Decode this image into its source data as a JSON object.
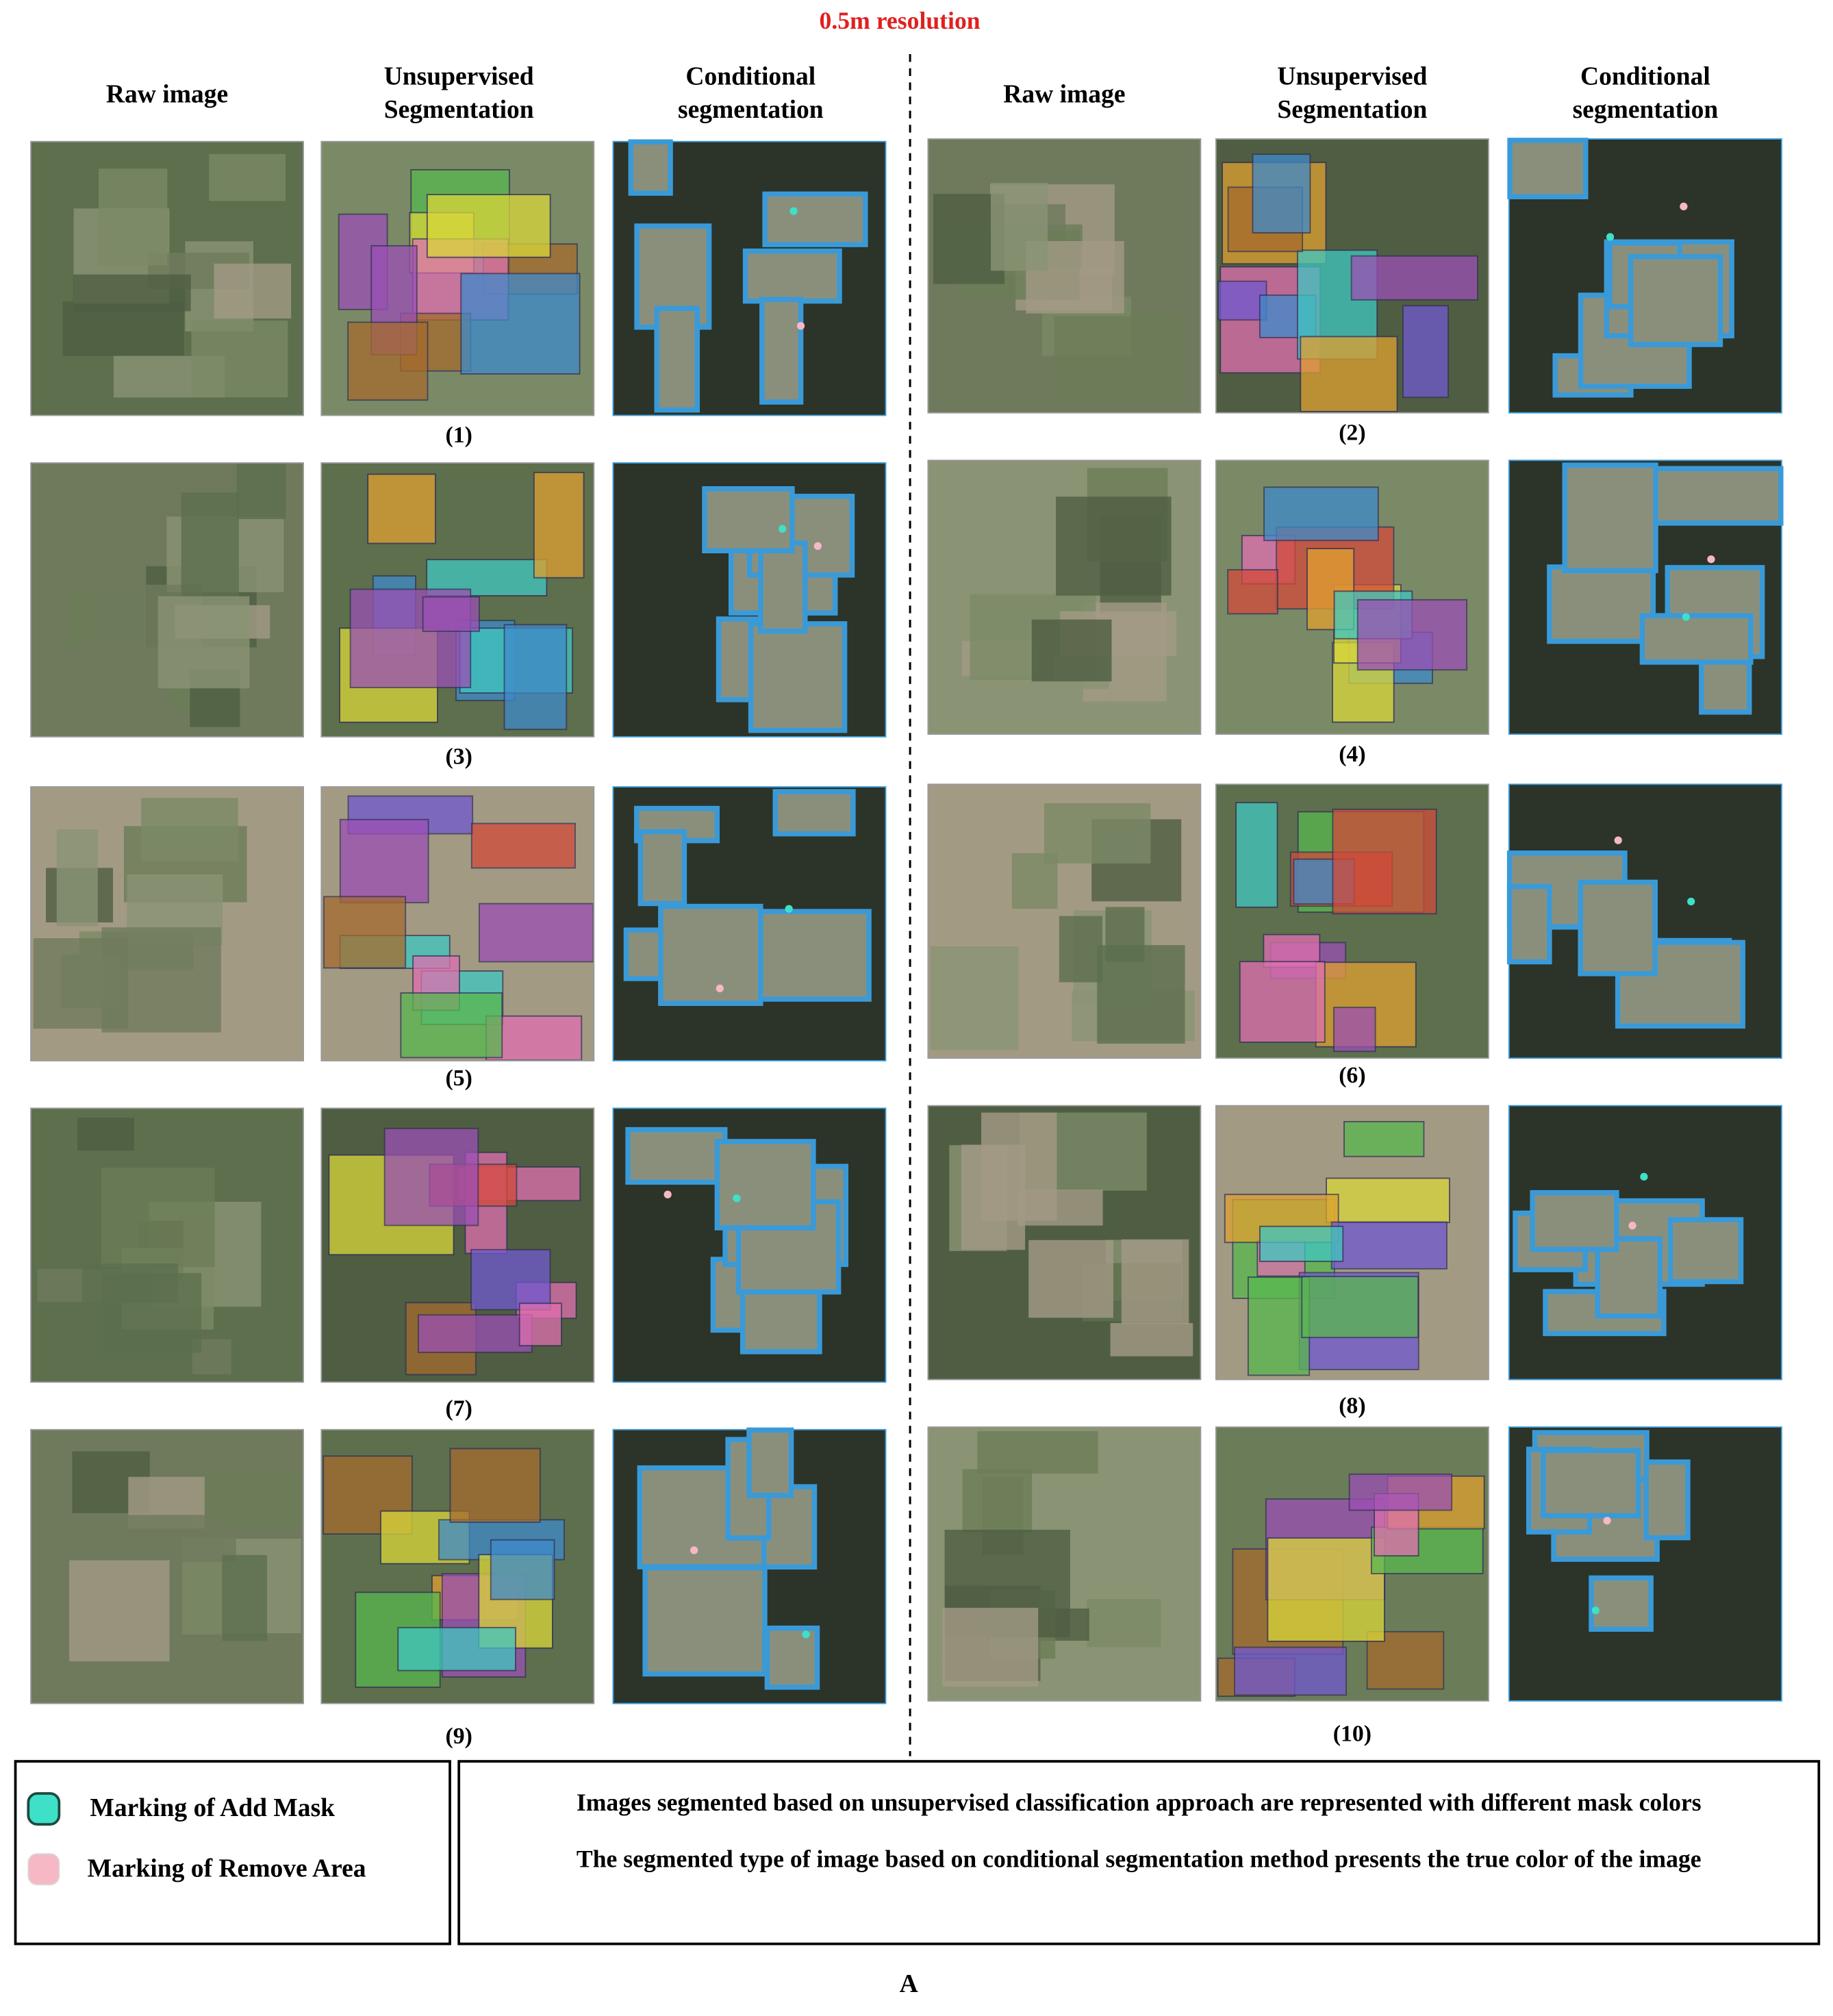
{
  "title": "0.5m resolution",
  "column_headers": {
    "left": [
      [
        "Raw image"
      ],
      [
        "Unsupervised",
        "Segmentation"
      ],
      [
        "Conditional",
        "segmentation"
      ]
    ],
    "right": [
      [
        "Raw image"
      ],
      [
        "Unsupervised",
        "Segmentation"
      ],
      [
        "Conditional",
        "segmentation"
      ]
    ]
  },
  "panels": [
    "(1)",
    "(2)",
    "(3)",
    "(4)",
    "(5)",
    "(6)",
    "(7)",
    "(8)",
    "(9)",
    "(10)"
  ],
  "legend": [
    "Marking of Add Mask",
    "Marking of Remove Area"
  ],
  "notes": [
    "Images segmented based on unsupervised classification approach are represented with different mask colors",
    "The segmented type of image based on conditional segmentation method presents the true color of the image"
  ],
  "figure_label": "A"
}
